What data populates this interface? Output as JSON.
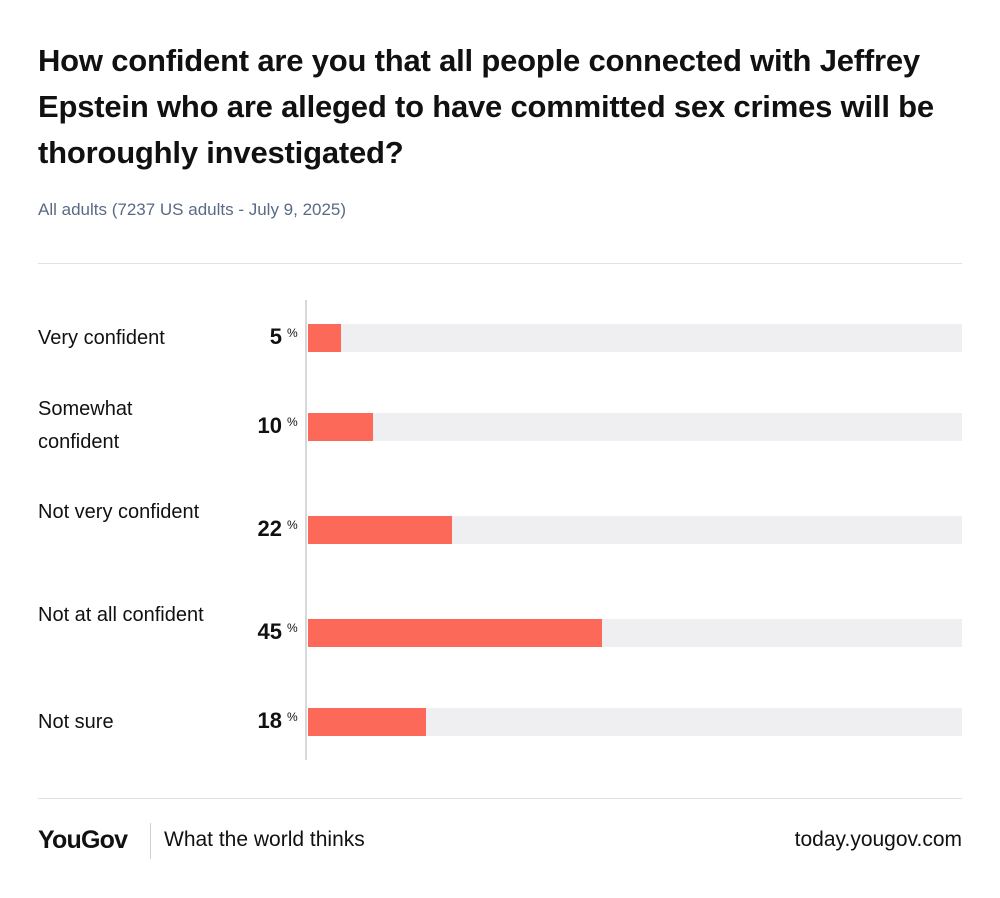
{
  "header": {
    "title": "How confident are you that all people connected with Jeffrey Epstein who are alleged to have committed sex crimes will be thoroughly investigated?",
    "subtitle": "All adults (7237 US adults - July 9, 2025)"
  },
  "chart_data": {
    "type": "bar",
    "orientation": "horizontal",
    "categories": [
      "Very confident",
      "Somewhat confident",
      "Not very confident",
      "Not at all confident",
      "Not sure"
    ],
    "values": [
      5,
      10,
      22,
      45,
      18
    ],
    "value_labels": [
      "5",
      "10",
      "22",
      "45",
      "18"
    ],
    "unit": "%",
    "xlim": [
      0,
      100
    ],
    "grid": false,
    "legend": "none",
    "colors": {
      "bar": "#fd6959",
      "track": "#efeff2"
    }
  },
  "footer": {
    "brand": "YouGov",
    "tagline": "What the world thinks",
    "url": "today.yougov.com"
  }
}
